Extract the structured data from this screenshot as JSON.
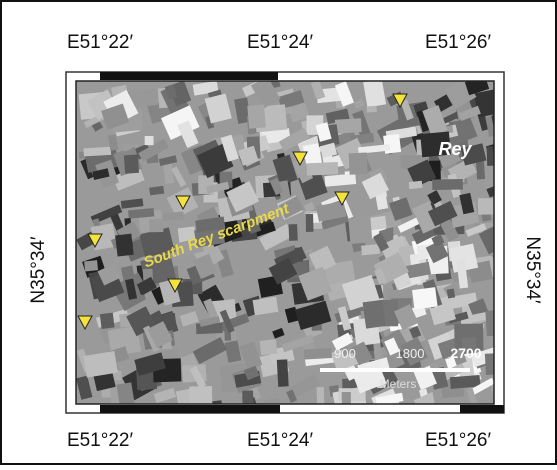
{
  "map": {
    "top_labels": [
      "E51°22′",
      "E51°24′",
      "E51°26′"
    ],
    "bottom_labels": [
      "E51°22′",
      "E51°24′",
      "E51°26′"
    ],
    "left_label": "N35°34′",
    "right_label": "N35°34′",
    "places": {
      "town": "Rey",
      "scarp": "South Rey scarpment"
    },
    "scale": {
      "labels": [
        "900",
        "1800",
        "2700"
      ],
      "unit": "Meters"
    }
  }
}
